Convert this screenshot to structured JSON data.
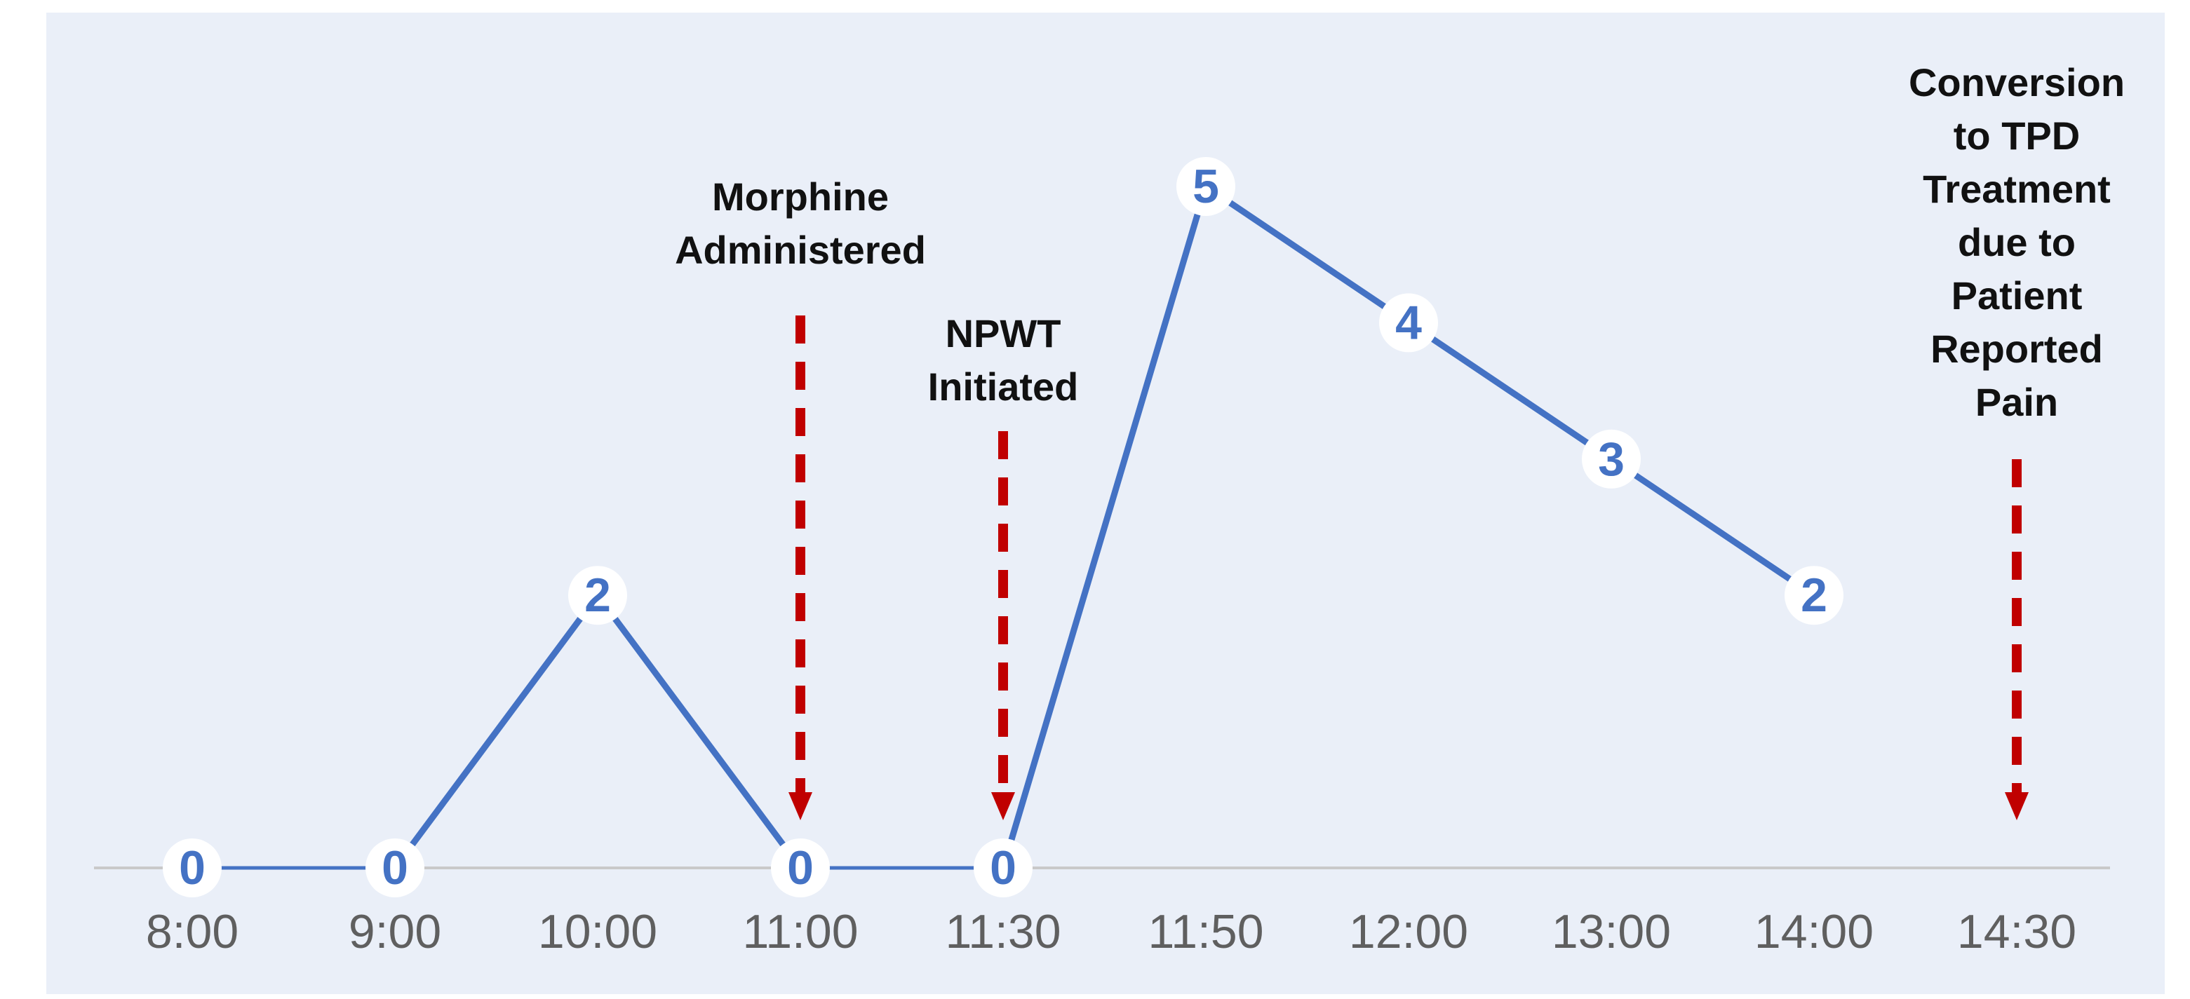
{
  "chart_data": {
    "type": "line",
    "title": "",
    "xlabel": "",
    "ylabel": "",
    "x": [
      "8:00",
      "9:00",
      "10:00",
      "11:00",
      "11:30",
      "11:50",
      "12:00",
      "13:00",
      "14:00",
      "14:30"
    ],
    "values": [
      0,
      0,
      2,
      0,
      0,
      5,
      4,
      3,
      2,
      null
    ],
    "ylim": [
      0,
      5
    ],
    "grid": false,
    "legend": "none",
    "colors": {
      "line": "#4472c4",
      "marker_fill": "#ffffff",
      "annotation_arrow": "#c00000",
      "axis": "#c9c9c9",
      "background": "#eaeff8"
    },
    "annotations": [
      {
        "x": "11:00",
        "lines": [
          "Morphine",
          "Administered"
        ]
      },
      {
        "x": "11:30",
        "lines": [
          "NPWT",
          "Initiated"
        ]
      },
      {
        "x": "14:30",
        "lines": [
          "Conversion",
          "to TPD",
          "Treatment",
          "due to",
          "Patient",
          "Reported",
          "Pain"
        ]
      }
    ]
  }
}
